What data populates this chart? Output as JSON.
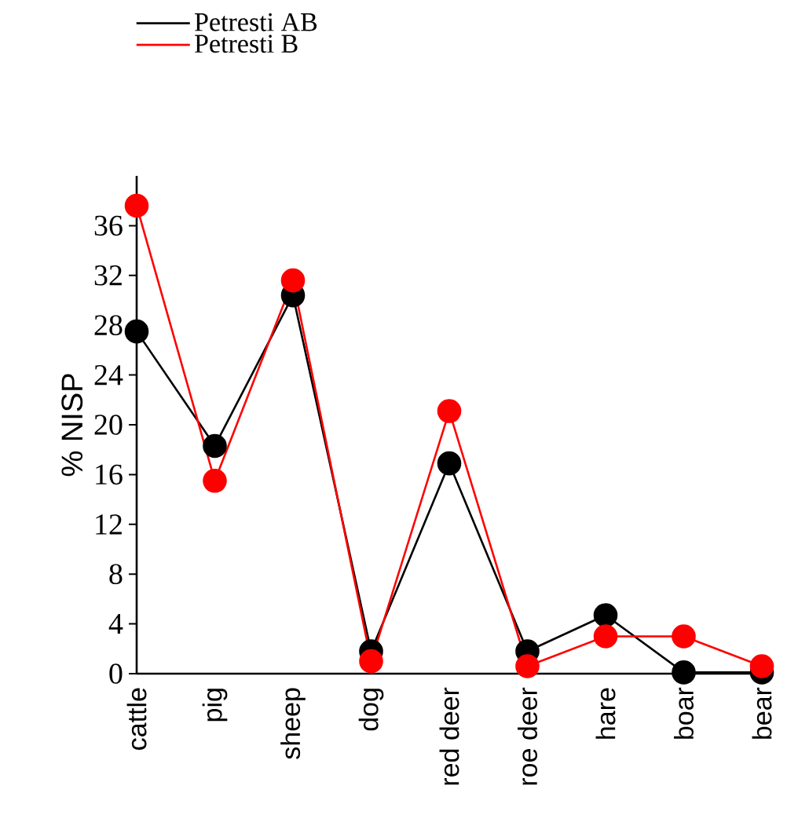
{
  "chart_data": {
    "type": "line",
    "ylabel": "% NISP",
    "categories": [
      "cattle",
      "pig",
      "sheep",
      "dog",
      "red deer",
      "roe deer",
      "hare",
      "boar",
      "bear"
    ],
    "series": [
      {
        "name": "Petresti AB",
        "color": "#000000",
        "values": [
          27.5,
          18.3,
          30.4,
          1.8,
          16.9,
          1.8,
          4.7,
          0.1,
          0.1
        ]
      },
      {
        "name": "Petresti B",
        "color": "#ff0000",
        "values": [
          37.6,
          15.5,
          31.6,
          1.0,
          21.1,
          0.6,
          3.0,
          3.0,
          0.6
        ]
      }
    ],
    "ylim": [
      0,
      40
    ],
    "yticks": [
      0,
      4,
      8,
      12,
      16,
      20,
      24,
      28,
      32,
      36
    ],
    "marker": "circle",
    "line_style": "solid",
    "legend": "top left",
    "grid": false
  }
}
